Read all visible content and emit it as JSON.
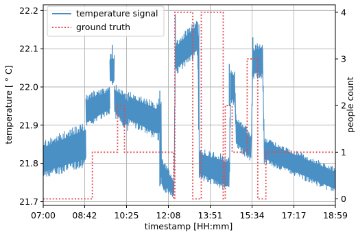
{
  "chart_data": {
    "type": "line",
    "title": "",
    "xlabel": "timestamp [HH:mm]",
    "ylabel": "temperature [$^\\circ$C]",
    "ylabel_display": "temperature [ ° C]",
    "y2label": "people count",
    "x_unit": "minutes since 00:00",
    "xlim": [
      420,
      1139
    ],
    "ylim": [
      21.69,
      22.215
    ],
    "y2lim": [
      -0.14,
      4.16
    ],
    "x_ticks": [
      420,
      522,
      625,
      728,
      831,
      934,
      1037,
      1139
    ],
    "x_tick_labels": [
      "07:00",
      "08:42",
      "10:25",
      "12:08",
      "13:51",
      "15:34",
      "17:17",
      "18:59"
    ],
    "y_ticks": [
      21.7,
      21.8,
      21.9,
      22.0,
      22.1,
      22.2
    ],
    "y_tick_labels": [
      "21.7",
      "21.8",
      "21.9",
      "22.0",
      "22.1",
      "22.2"
    ],
    "y2_ticks": [
      0,
      1,
      2,
      3,
      4
    ],
    "y2_tick_labels": [
      "0",
      "1",
      "2",
      "3",
      "4"
    ],
    "grid": true,
    "legend_position": "top-left",
    "series": [
      {
        "name": "temperature signal",
        "axis": "left",
        "color": "#4a90c4",
        "style": "band",
        "segments": [
          {
            "x": [
              420,
              525
            ],
            "low": [
              21.76,
              21.79
            ],
            "high": [
              21.86,
              21.91
            ]
          },
          {
            "x": [
              525,
              543
            ],
            "low": [
              21.89,
              21.9
            ],
            "high": [
              21.98,
              21.99
            ]
          },
          {
            "x": [
              543,
              584
            ],
            "low": [
              21.9,
              21.93
            ],
            "high": [
              21.99,
              22.0
            ]
          },
          {
            "x": [
              584,
              595
            ],
            "low": [
              22.0,
              22.0
            ],
            "high": [
              22.09,
              22.09
            ]
          },
          {
            "x": [
              595,
              630
            ],
            "low": [
              21.92,
              21.88
            ],
            "high": [
              22.01,
              21.98
            ]
          },
          {
            "x": [
              630,
              700
            ],
            "low": [
              21.9,
              21.86
            ],
            "high": [
              21.99,
              21.96
            ]
          },
          {
            "x": [
              700,
              707
            ],
            "low": [
              21.86,
              21.86
            ],
            "high": [
              21.97,
              21.97
            ]
          },
          {
            "x": [
              707,
              711
            ],
            "low": [
              21.74,
              21.74
            ],
            "high": [
              21.98,
              21.98
            ]
          },
          {
            "x": [
              711,
              742
            ],
            "low": [
              21.73,
              21.71
            ],
            "high": [
              21.82,
              21.76
            ]
          },
          {
            "x": [
              742,
              745
            ],
            "low": [
              21.71,
              22.03
            ],
            "high": [
              21.76,
              22.15
            ]
          },
          {
            "x": [
              745,
              800
            ],
            "low": [
              22.03,
              22.08
            ],
            "high": [
              22.12,
              22.18
            ]
          },
          {
            "x": [
              800,
              804
            ],
            "low": [
              22.08,
              21.76
            ],
            "high": [
              22.18,
              22.18
            ]
          },
          {
            "x": [
              804,
              878
            ],
            "low": [
              21.76,
              21.72
            ],
            "high": [
              21.84,
              21.82
            ]
          },
          {
            "x": [
              878,
              881
            ],
            "low": [
              21.72,
              21.95
            ],
            "high": [
              21.82,
              22.05
            ]
          },
          {
            "x": [
              881,
              891
            ],
            "low": [
              21.95,
              21.95
            ],
            "high": [
              22.05,
              22.05
            ]
          },
          {
            "x": [
              891,
              895
            ],
            "low": [
              21.95,
              21.84
            ],
            "high": [
              22.05,
              21.92
            ]
          },
          {
            "x": [
              895,
              932
            ],
            "low": [
              21.84,
              21.8
            ],
            "high": [
              21.93,
              21.88
            ]
          },
          {
            "x": [
              932,
              936
            ],
            "low": [
              21.8,
              22.02
            ],
            "high": [
              21.88,
              22.11
            ]
          },
          {
            "x": [
              936,
              960
            ],
            "low": [
              22.02,
              22.02
            ],
            "high": [
              22.11,
              22.12
            ]
          },
          {
            "x": [
              960,
              964
            ],
            "low": [
              22.02,
              21.79
            ],
            "high": [
              22.12,
              21.87
            ]
          },
          {
            "x": [
              964,
              1139
            ],
            "low": [
              21.8,
              21.72
            ],
            "high": [
              21.87,
              21.79
            ]
          }
        ],
        "spikes": [
          {
            "x": 590,
            "low": 22.01,
            "high": 22.11
          },
          {
            "x": 745,
            "low": 22.05,
            "high": 22.19
          },
          {
            "x": 878,
            "low": 21.95,
            "high": 22.06
          },
          {
            "x": 936,
            "low": 22.03,
            "high": 22.13
          },
          {
            "x": 707,
            "low": 21.74,
            "high": 21.99
          }
        ]
      },
      {
        "name": "ground truth",
        "axis": "right",
        "color": "#e8474c",
        "style": "dotted",
        "x": [
          420,
          541,
          541,
          603,
          603,
          620,
          620,
          741,
          741,
          744,
          744,
          788,
          788,
          809,
          809,
          863,
          863,
          868,
          868,
          885,
          885,
          922,
          922,
          948,
          948,
          968,
          968,
          1137
        ],
        "y": [
          0,
          0,
          1,
          1,
          2,
          2,
          1,
          1,
          0,
          0,
          4,
          4,
          0,
          0,
          4,
          4,
          0,
          0,
          2,
          2,
          1,
          1,
          3,
          3,
          0,
          0,
          1,
          1
        ]
      }
    ]
  }
}
